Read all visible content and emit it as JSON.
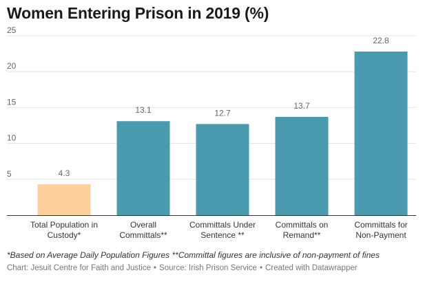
{
  "chart_data": {
    "type": "bar",
    "title": "Women Entering Prison in 2019 (%)",
    "categories": [
      [
        "Total Population in",
        "Custody*"
      ],
      [
        "Overall",
        "Committals**"
      ],
      [
        "Committals Under",
        "Sentence **"
      ],
      [
        "Committals on",
        "Remand**"
      ],
      [
        "Committals for",
        "Non-Payment"
      ]
    ],
    "values": [
      4.3,
      13.1,
      12.7,
      13.7,
      22.8
    ],
    "value_labels": [
      "4.3",
      "13.1",
      "12.7",
      "13.7",
      "22.8"
    ],
    "colors": [
      "#fdd19c",
      "#4b9bb0",
      "#4b9bb0",
      "#4b9bb0",
      "#4b9bb0"
    ],
    "ylim": [
      0,
      25
    ],
    "yticks": [
      5,
      10,
      15,
      20,
      25
    ],
    "grid": true,
    "xlabel": "",
    "ylabel": ""
  },
  "footer": {
    "note": "*Based on Average Daily Population Figures **Committal figures are inclusive of non-payment of fines",
    "credit_chart": "Chart: Jesuit Centre for Faith and Justice",
    "credit_source": "Source: Irish Prison Service",
    "credit_tool": "Created with Datawrapper",
    "separator": "•"
  }
}
